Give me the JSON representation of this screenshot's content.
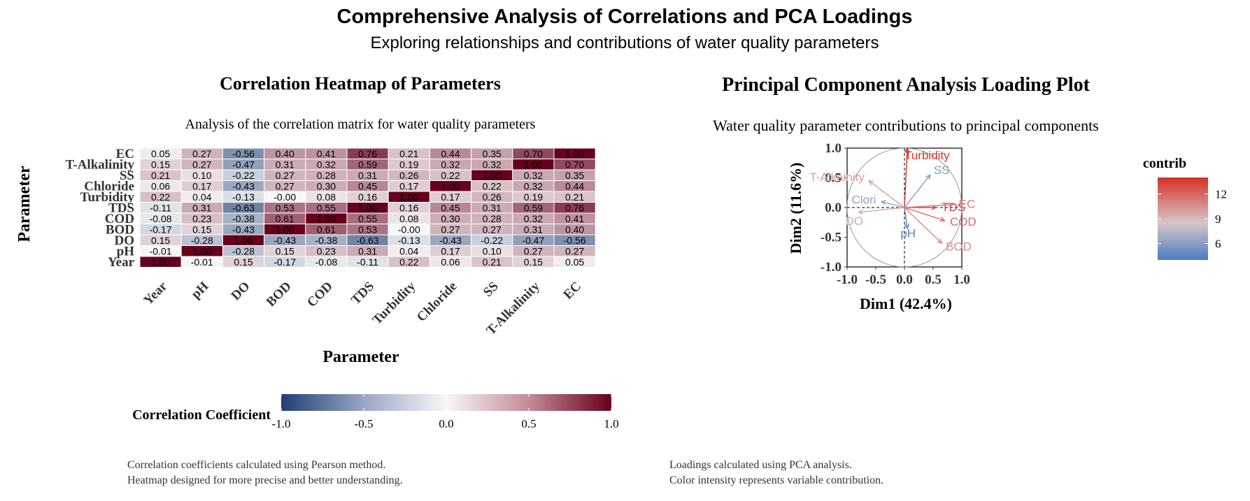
{
  "main_title": "Comprehensive Analysis of Correlations and PCA Loadings",
  "main_subtitle": "Exploring relationships and contributions of water quality parameters",
  "chart_data": [
    {
      "type": "heatmap",
      "title": "Correlation Heatmap of Parameters",
      "subtitle": "Analysis of the correlation matrix for water quality parameters",
      "xlabel": "Parameter",
      "ylabel": "Parameter",
      "x_categories": [
        "Year",
        "pH",
        "DO",
        "BOD",
        "COD",
        "TDS",
        "Turbidity",
        "Chloride",
        "SS",
        "T-Alkalinity",
        "EC"
      ],
      "y_categories_top_to_bottom": [
        "EC",
        "T-Alkalinity",
        "SS",
        "Chloride",
        "Turbidity",
        "TDS",
        "COD",
        "BOD",
        "DO",
        "pH",
        "Year"
      ],
      "cell_labels": [
        [
          "0.05",
          "0.27",
          "-0.56",
          "0.40",
          "0.41",
          "0.76",
          "0.21",
          "0.44",
          "0.35",
          "0.70",
          "1.00"
        ],
        [
          "0.15",
          "0.27",
          "-0.47",
          "0.31",
          "0.32",
          "0.59",
          "0.19",
          "0.32",
          "0.32",
          "1.00",
          "0.70"
        ],
        [
          "0.21",
          "0.10",
          "-0.22",
          "0.27",
          "0.28",
          "0.31",
          "0.26",
          "0.22",
          "1.00",
          "0.32",
          "0.35"
        ],
        [
          "0.06",
          "0.17",
          "-0.43",
          "0.27",
          "0.30",
          "0.45",
          "0.17",
          "1.00",
          "0.22",
          "0.32",
          "0.44"
        ],
        [
          "0.22",
          "0.04",
          "-0.13",
          "-0.00",
          "0.08",
          "0.16",
          "1.00",
          "0.17",
          "0.26",
          "0.19",
          "0.21"
        ],
        [
          "-0.11",
          "0.31",
          "-0.63",
          "0.53",
          "0.55",
          "1.00",
          "0.16",
          "0.45",
          "0.31",
          "0.59",
          "0.76"
        ],
        [
          "-0.08",
          "0.23",
          "-0.38",
          "0.61",
          "1.00",
          "0.55",
          "0.08",
          "0.30",
          "0.28",
          "0.32",
          "0.41"
        ],
        [
          "-0.17",
          "0.15",
          "-0.43",
          "1.00",
          "0.61",
          "0.53",
          "-0.00",
          "0.27",
          "0.27",
          "0.31",
          "0.40"
        ],
        [
          "0.15",
          "-0.28",
          "1.00",
          "-0.43",
          "-0.38",
          "-0.63",
          "-0.13",
          "-0.43",
          "-0.22",
          "-0.47",
          "-0.56"
        ],
        [
          "-0.01",
          "1.00",
          "-0.28",
          "0.15",
          "0.23",
          "0.31",
          "0.04",
          "0.17",
          "0.10",
          "0.27",
          "0.27"
        ],
        [
          "1.00",
          "-0.01",
          "0.15",
          "-0.17",
          "-0.08",
          "-0.11",
          "0.22",
          "0.06",
          "0.21",
          "0.15",
          "0.05"
        ]
      ],
      "legend": {
        "title": "Correlation Coefficient",
        "ticks": [
          "-1.0",
          "-0.5",
          "0.0",
          "0.5",
          "1.0"
        ],
        "range": [
          -1,
          1
        ],
        "low_color": "#1f3f73",
        "mid_color": "#f7f7f7",
        "high_color": "#67001f"
      },
      "caption": [
        "Correlation coefficients calculated using Pearson method.",
        "Heatmap designed for more precise and better understanding."
      ]
    },
    {
      "type": "scatter",
      "title": "Principal Component Analysis Loading Plot",
      "subtitle": "Water quality parameter contributions to principal components",
      "xlabel": "Dim1 (42.4%)",
      "ylabel": "Dim2 (11.6%)",
      "xlim": [
        -1.0,
        1.0
      ],
      "ylim": [
        -1.0,
        1.0
      ],
      "x_ticks": [
        "-1.0",
        "-0.5",
        "0.0",
        "0.5",
        "1.0"
      ],
      "y_ticks": [
        "1.0",
        "0.5",
        "0.0",
        "-0.5",
        "-1.0"
      ],
      "unit_circle": true,
      "loadings": [
        {
          "name": "Turbidity",
          "x": 0.05,
          "y": 1.0,
          "contrib": 14
        },
        {
          "name": "SS",
          "x": 0.45,
          "y": 0.55,
          "contrib": 6
        },
        {
          "name": "T-Alkainity",
          "x": -0.62,
          "y": 0.45,
          "contrib": 10.5
        },
        {
          "name": "Clori",
          "x": -0.4,
          "y": 0.1,
          "contrib": 6.5
        },
        {
          "name": "TDS",
          "x": 0.55,
          "y": 0.0,
          "contrib": 13.5
        },
        {
          "name": "EC",
          "x": 0.85,
          "y": 0.05,
          "contrib": 11.5
        },
        {
          "name": "COD",
          "x": 0.7,
          "y": -0.22,
          "contrib": 12
        },
        {
          "name": "DO",
          "x": -0.8,
          "y": -0.08,
          "contrib": 10
        },
        {
          "name": "pH",
          "x": 0.05,
          "y": -0.35,
          "contrib": 4.5
        },
        {
          "name": "BOD",
          "x": 0.65,
          "y": -0.6,
          "contrib": 11
        }
      ],
      "legend": {
        "title": "contrib",
        "ticks": [
          "12",
          "9",
          "6"
        ],
        "range": [
          4,
          14
        ],
        "low_color": "#4a7dbf",
        "mid_color": "#d6c7c9",
        "high_color": "#d73027"
      },
      "caption": [
        "Loadings calculated using PCA analysis.",
        "Color intensity represents variable contribution."
      ]
    }
  ]
}
